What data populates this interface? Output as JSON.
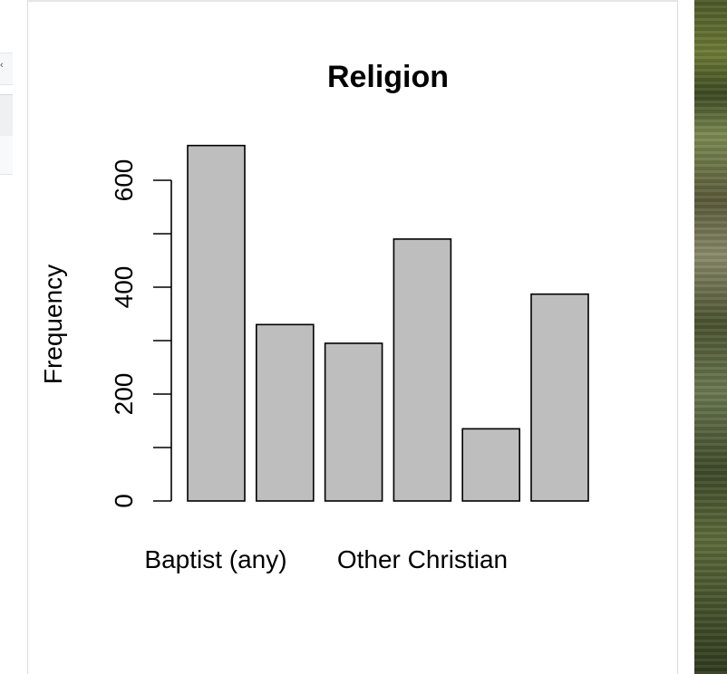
{
  "chart_data": {
    "type": "bar",
    "title": "Religion",
    "xlabel": "",
    "ylabel": "Frequency",
    "categories": [
      "Baptist (any)",
      "",
      "",
      "",
      "",
      ""
    ],
    "visible_category_labels": [
      "Baptist (any)",
      "Other Christian"
    ],
    "values": [
      665,
      330,
      295,
      490,
      135,
      387
    ],
    "ylim": [
      0,
      700
    ],
    "yticks": [
      0,
      100,
      200,
      300,
      400,
      500,
      600
    ],
    "ytick_labels": [
      "0",
      "",
      "200",
      "",
      "400",
      "",
      "600"
    ],
    "bar_color": "#bebebe",
    "bar_edge_color": "#000000",
    "grid": false
  }
}
